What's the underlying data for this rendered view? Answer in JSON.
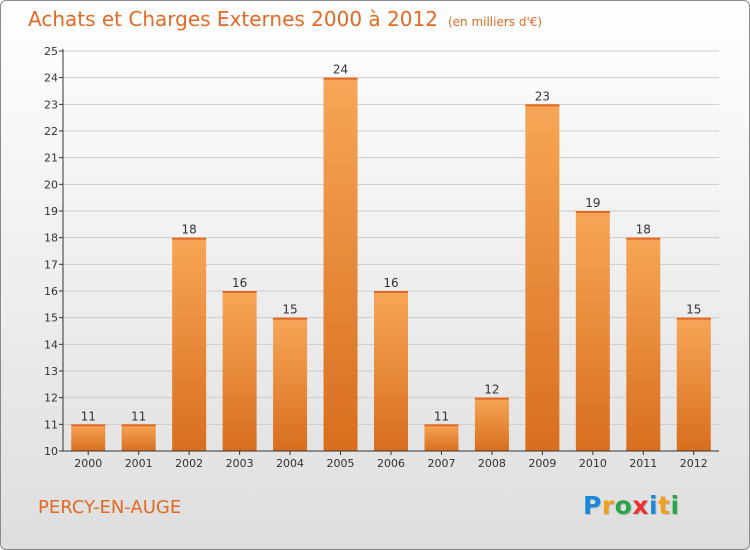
{
  "header": {
    "title": "Achats et Charges Externes 2000 à 2012",
    "subtitle": "(en milliers d'€)"
  },
  "footer": {
    "place": "PERCY-EN-AUGE"
  },
  "logo": {
    "text": "Proxiti",
    "letters": [
      {
        "ch": "P",
        "color": "#1e88d8"
      },
      {
        "ch": "r",
        "color": "#f0a020"
      },
      {
        "ch": "o",
        "color": "#2aa64a"
      },
      {
        "ch": "x",
        "color": "#e8322a"
      },
      {
        "ch": "i",
        "color": "#1e88d8"
      },
      {
        "ch": "t",
        "color": "#f0a020"
      },
      {
        "ch": "i",
        "color": "#2aa64a"
      }
    ]
  },
  "colors": {
    "accent": "#e26a24",
    "bar_top": "#f7a657",
    "bar_bottom": "#d86e1e",
    "axis": "#333333",
    "grid": "#cccccc"
  },
  "chart_data": {
    "type": "bar",
    "categories": [
      "2000",
      "2001",
      "2002",
      "2003",
      "2004",
      "2005",
      "2006",
      "2007",
      "2008",
      "2009",
      "2010",
      "2011",
      "2012"
    ],
    "values": [
      11,
      11,
      18,
      16,
      15,
      24,
      16,
      11,
      12,
      23,
      19,
      18,
      15
    ],
    "ylim": [
      10,
      25
    ],
    "yticks": [
      10,
      11,
      12,
      13,
      14,
      15,
      16,
      17,
      18,
      19,
      20,
      21,
      22,
      23,
      24,
      25
    ],
    "grid": true,
    "data_labels": true
  }
}
